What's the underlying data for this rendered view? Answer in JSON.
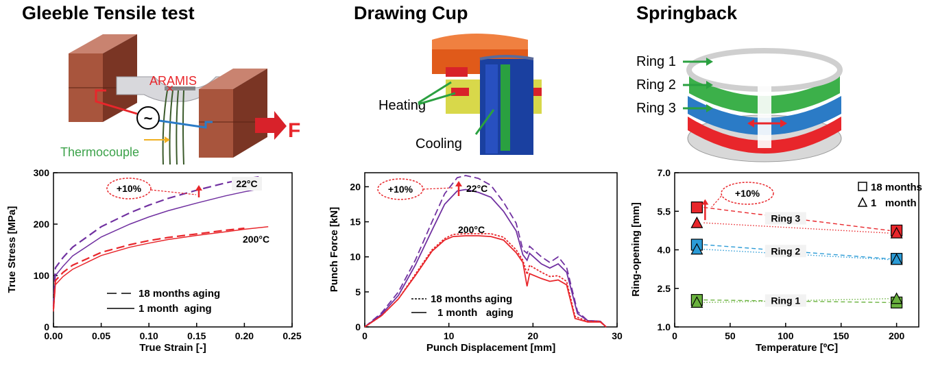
{
  "titles": {
    "tensile": "Gleeble Tensile test",
    "cup": "Drawing Cup",
    "springback": "Springback"
  },
  "figure_labels": {
    "aramis": "ARAMIS",
    "force": "F",
    "thermocouple": "Thermocouple",
    "heating": "Heating",
    "cooling": "Cooling",
    "ring1": "Ring 1",
    "ring2": "Ring 2",
    "ring3": "Ring 3"
  },
  "colors": {
    "purple": "#7030a0",
    "red": "#e8262b",
    "blue": "#2b9bd6",
    "green": "#6ab23e",
    "orange": "#e05a1a",
    "copper": "#a8553d"
  },
  "chart_data": [
    {
      "id": "tensile",
      "type": "line",
      "xlabel": "True Strain [-]",
      "ylabel": "True Stress [MPa]",
      "xlim": [
        0,
        0.25
      ],
      "ylim": [
        0,
        300
      ],
      "xticks": [
        "0.00",
        "0.05",
        "0.10",
        "0.15",
        "0.20",
        "0.25"
      ],
      "yticks": [
        "0",
        "100",
        "200",
        "300"
      ],
      "annotations": [
        "+10%",
        "22°C",
        "200°C"
      ],
      "legend": [
        "18 months aging",
        "1 month  aging"
      ],
      "series": [
        {
          "temp": "22°C",
          "aging": "18 months",
          "style": "dashed",
          "x": [
            0,
            0.002,
            0.01,
            0.02,
            0.05,
            0.08,
            0.1,
            0.12,
            0.15,
            0.18,
            0.2,
            0.215
          ],
          "y": [
            40,
            115,
            135,
            155,
            195,
            222,
            237,
            250,
            266,
            280,
            288,
            292
          ]
        },
        {
          "temp": "22°C",
          "aging": "1 month",
          "style": "solid",
          "x": [
            0,
            0.002,
            0.01,
            0.02,
            0.05,
            0.08,
            0.1,
            0.12,
            0.15,
            0.18,
            0.2,
            0.215
          ],
          "y": [
            35,
            100,
            118,
            138,
            175,
            200,
            214,
            226,
            241,
            255,
            263,
            268
          ]
        },
        {
          "temp": "200°C",
          "aging": "18 months",
          "style": "dashed",
          "x": [
            0,
            0.002,
            0.01,
            0.02,
            0.05,
            0.08,
            0.1,
            0.12,
            0.15,
            0.18,
            0.2
          ],
          "y": [
            35,
            90,
            106,
            120,
            145,
            160,
            168,
            174,
            181,
            188,
            192
          ]
        },
        {
          "temp": "200°C",
          "aging": "1 month",
          "style": "solid",
          "x": [
            0,
            0.002,
            0.01,
            0.02,
            0.05,
            0.08,
            0.1,
            0.12,
            0.15,
            0.18,
            0.2,
            0.225
          ],
          "y": [
            30,
            82,
            98,
            112,
            139,
            155,
            163,
            170,
            178,
            185,
            190,
            195
          ]
        }
      ]
    },
    {
      "id": "cup",
      "type": "line",
      "xlabel": "Punch Displacement [mm]",
      "ylabel": "Punch Force [kN]",
      "xlim": [
        0,
        30
      ],
      "ylim": [
        0,
        22
      ],
      "xticks": [
        "0",
        "10",
        "20",
        "30"
      ],
      "yticks": [
        "0",
        "5",
        "10",
        "15",
        "20"
      ],
      "annotations": [
        "+10%",
        "22°C",
        "200°C"
      ],
      "legend": [
        "18 months aging",
        "1 month   aging"
      ],
      "series": [
        {
          "temp": "22°C",
          "aging": "18 months",
          "style": "dashed",
          "x": [
            0,
            2,
            4,
            6,
            8,
            9.5,
            11,
            12,
            13.5,
            15,
            16.5,
            18,
            18.8,
            19.3,
            19.6,
            21,
            22,
            23,
            24,
            25.3,
            26.5,
            28,
            28.7
          ],
          "y": [
            0,
            2,
            5,
            9.5,
            15,
            19,
            21.3,
            21.6,
            21.2,
            20.2,
            17.8,
            14.8,
            11,
            10.5,
            11.5,
            10,
            9.2,
            10,
            8.5,
            2.2,
            0.9,
            0.8,
            0
          ]
        },
        {
          "temp": "22°C",
          "aging": "1 month",
          "style": "solid",
          "x": [
            0,
            2,
            4,
            6,
            8,
            9.5,
            11,
            12,
            13.5,
            15,
            16.5,
            18,
            18.8,
            19.3,
            19.6,
            21,
            22,
            23,
            24,
            25.3,
            26.5,
            28,
            28.7
          ],
          "y": [
            0,
            1.8,
            4.5,
            8.8,
            13.8,
            17.5,
            19.4,
            19.6,
            19.2,
            18.5,
            16.5,
            13.7,
            10.3,
            9.5,
            10.5,
            9,
            8.4,
            9,
            7.8,
            1.9,
            0.9,
            0.8,
            0
          ]
        },
        {
          "temp": "200°C",
          "aging": "18 months",
          "style": "dashed",
          "x": [
            0,
            2,
            4,
            6,
            8,
            9.5,
            10.5,
            12,
            13.5,
            15,
            16.5,
            18,
            18.8,
            19.3,
            19.6,
            21,
            22,
            23,
            24,
            25,
            26.5,
            28,
            28.7
          ],
          "y": [
            0,
            1.6,
            4,
            7.5,
            11,
            12.6,
            13.2,
            13.3,
            13.3,
            13.3,
            12.8,
            11,
            9.5,
            7.5,
            8.8,
            7.8,
            7.2,
            7.3,
            6.5,
            1.5,
            0.8,
            0.8,
            0
          ]
        },
        {
          "temp": "200°C",
          "aging": "1 month",
          "style": "solid",
          "x": [
            0,
            2,
            4,
            6,
            8,
            9.5,
            10.5,
            12,
            13.5,
            15,
            16.5,
            18,
            18.8,
            19.3,
            19.6,
            21,
            22,
            23,
            24,
            25,
            26.5,
            28,
            28.7
          ],
          "y": [
            0,
            1.6,
            4,
            7.3,
            10.8,
            12.4,
            12.9,
            13,
            13,
            12.9,
            12.4,
            10.6,
            9.2,
            5.8,
            7.6,
            6.9,
            6.5,
            6.7,
            6,
            1.2,
            0.7,
            0.7,
            0
          ]
        }
      ]
    },
    {
      "id": "springback",
      "type": "scatter",
      "xlabel": "Temperature [ºC]",
      "ylabel": "Ring-opening [mm]",
      "xlim": [
        0,
        220
      ],
      "ylim": [
        1.0,
        7.0
      ],
      "xticks": [
        "0",
        "50",
        "100",
        "150",
        "200"
      ],
      "yticks": [
        "1.0",
        "2.5",
        "4.0",
        "5.5",
        "7.0"
      ],
      "annotations": [
        "+10%"
      ],
      "legend": [
        "18 months",
        "1   month"
      ],
      "series": [
        {
          "ring": "Ring 1",
          "color": "green",
          "aging": "18 months",
          "marker": "square",
          "x": [
            20,
            200
          ],
          "y": [
            2.05,
            1.95
          ]
        },
        {
          "ring": "Ring 1",
          "color": "green",
          "aging": "1 month",
          "marker": "triangle",
          "x": [
            20,
            200
          ],
          "y": [
            1.95,
            2.1
          ]
        },
        {
          "ring": "Ring 2",
          "color": "blue",
          "aging": "18 months",
          "marker": "square",
          "x": [
            20,
            200
          ],
          "y": [
            4.2,
            3.65
          ]
        },
        {
          "ring": "Ring 2",
          "color": "blue",
          "aging": "1 month",
          "marker": "triangle",
          "x": [
            20,
            200
          ],
          "y": [
            4.02,
            3.62
          ]
        },
        {
          "ring": "Ring 3",
          "color": "red",
          "aging": "18 months",
          "marker": "square",
          "x": [
            20,
            200
          ],
          "y": [
            5.65,
            4.75
          ]
        },
        {
          "ring": "Ring 3",
          "color": "red",
          "aging": "1 month",
          "marker": "triangle",
          "x": [
            20,
            200
          ],
          "y": [
            5.05,
            4.65
          ]
        }
      ]
    }
  ]
}
